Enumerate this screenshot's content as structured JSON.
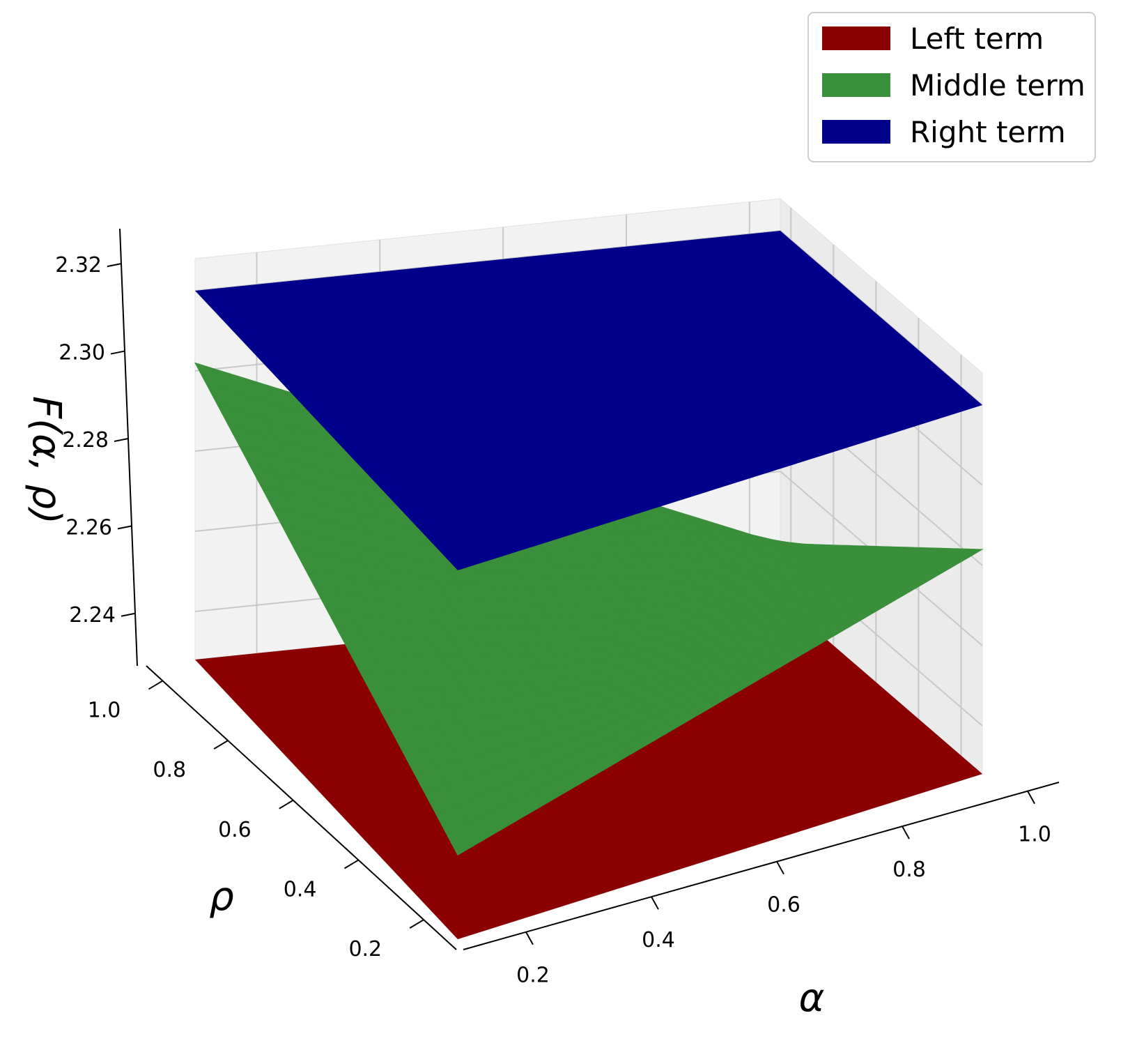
{
  "chart_data": {
    "type": "surface3d",
    "title": "",
    "xlabel": "α",
    "ylabel": "ρ",
    "zlabel": "F(α, ρ)",
    "xlim": [
      0.1,
      1.05
    ],
    "ylim": [
      0.1,
      1.05
    ],
    "zlim": [
      2.228,
      2.328
    ],
    "x_ticks": [
      "0.2",
      "0.4",
      "0.6",
      "0.8",
      "1.0"
    ],
    "y_ticks": [
      "0.2",
      "0.4",
      "0.6",
      "0.8",
      "1.0"
    ],
    "z_ticks": [
      "2.24",
      "2.26",
      "2.28",
      "2.30",
      "2.32"
    ],
    "grid": true,
    "legend": {
      "position": "top-right",
      "entries": [
        "Left term",
        "Middle term",
        "Right term"
      ]
    },
    "series": [
      {
        "name": "Left term",
        "color": "#8b0000",
        "shape": "flat plane",
        "z_constant": 2.228
      },
      {
        "name": "Middle term",
        "color": "#3a8f3a",
        "shape": "curved surface",
        "corners": [
          {
            "alpha": 0.1,
            "rho": 0.1,
            "z": 2.249
          },
          {
            "alpha": 1.05,
            "rho": 0.1,
            "z": 2.284
          },
          {
            "alpha": 0.1,
            "rho": 1.05,
            "z": 2.302
          },
          {
            "alpha": 1.05,
            "rho": 1.05,
            "z": 2.242
          }
        ],
        "min_z": 2.234
      },
      {
        "name": "Right term",
        "color": "#00008b",
        "shape": "flat plane",
        "z_constant": 2.32
      }
    ]
  }
}
